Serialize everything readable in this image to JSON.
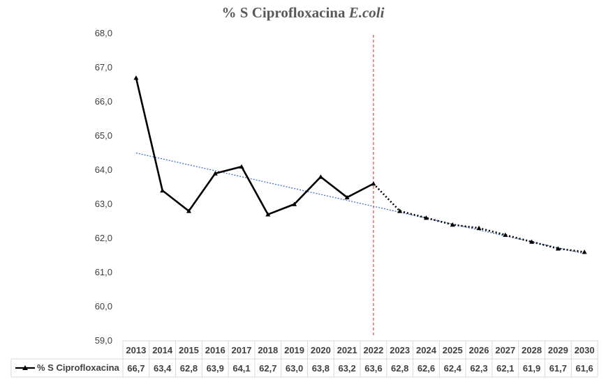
{
  "chart_data": {
    "type": "line",
    "title": "% S Ciprofloxacina",
    "title_italic": "E.coli",
    "ylim": [
      59.0,
      68.0
    ],
    "y_ticks": [
      "68,0",
      "67,0",
      "66,0",
      "65,0",
      "64,0",
      "63,0",
      "62,0",
      "61,0",
      "60,0",
      "59,0"
    ],
    "categories": [
      "2013",
      "2014",
      "2015",
      "2016",
      "2017",
      "2018",
      "2019",
      "2020",
      "2021",
      "2022",
      "2023",
      "2024",
      "2025",
      "2026",
      "2027",
      "2028",
      "2029",
      "2030"
    ],
    "series": [
      {
        "name": "% S Ciprofloxacina",
        "values": [
          66.7,
          63.4,
          62.8,
          63.9,
          64.1,
          62.7,
          63.0,
          63.8,
          63.2,
          63.6,
          62.8,
          62.6,
          62.4,
          62.3,
          62.1,
          61.9,
          61.7,
          61.6
        ],
        "labels": [
          "66,7",
          "63,4",
          "62,8",
          "63,9",
          "64,1",
          "62,7",
          "63,0",
          "63,8",
          "63,2",
          "63,6",
          "62,8",
          "62,6",
          "62,4",
          "62,3",
          "62,1",
          "61,9",
          "61,7",
          "61,6"
        ],
        "color": "#000000",
        "observed_until": "2022",
        "projection_style": "dotted"
      }
    ],
    "trendline": {
      "x": [
        "2013",
        "2030"
      ],
      "y": [
        64.5,
        61.55
      ],
      "color": "#4472c4",
      "style": "dotted"
    },
    "reference_line": {
      "x": "2022",
      "color": "#e02020",
      "style": "dashed"
    },
    "legend": "data-table",
    "grid": false
  }
}
